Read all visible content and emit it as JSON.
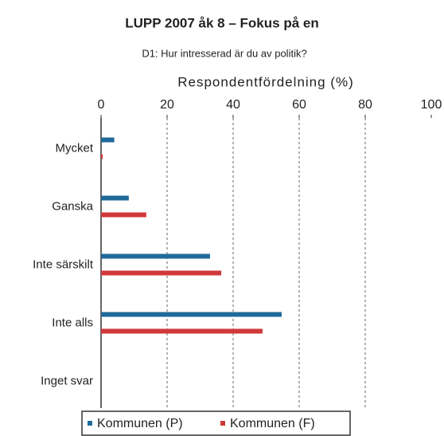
{
  "chart_data": {
    "type": "bar",
    "orientation": "horizontal",
    "title": "LUPP 2007 åk 8 –  Fokus på en",
    "subtitle": "D1: Hur intresserad är du av politik?",
    "xlabel": "Respondentfördelning (%)",
    "categories": [
      "Mycket",
      "Ganska",
      "Inte särskilt",
      "Inte alls",
      "Inget svar"
    ],
    "series": [
      {
        "name": "Kommunen (P)",
        "color": "#1f6a9a",
        "values": [
          4,
          8.4,
          33,
          54.7,
          0
        ]
      },
      {
        "name": "Kommunen (F)",
        "color": "#d03a3a",
        "values": [
          0.5,
          13.7,
          36.4,
          48.9,
          0
        ]
      }
    ],
    "xlim": [
      0,
      100
    ],
    "xticks": [
      0,
      20,
      40,
      60,
      80,
      100
    ],
    "grid": true
  }
}
